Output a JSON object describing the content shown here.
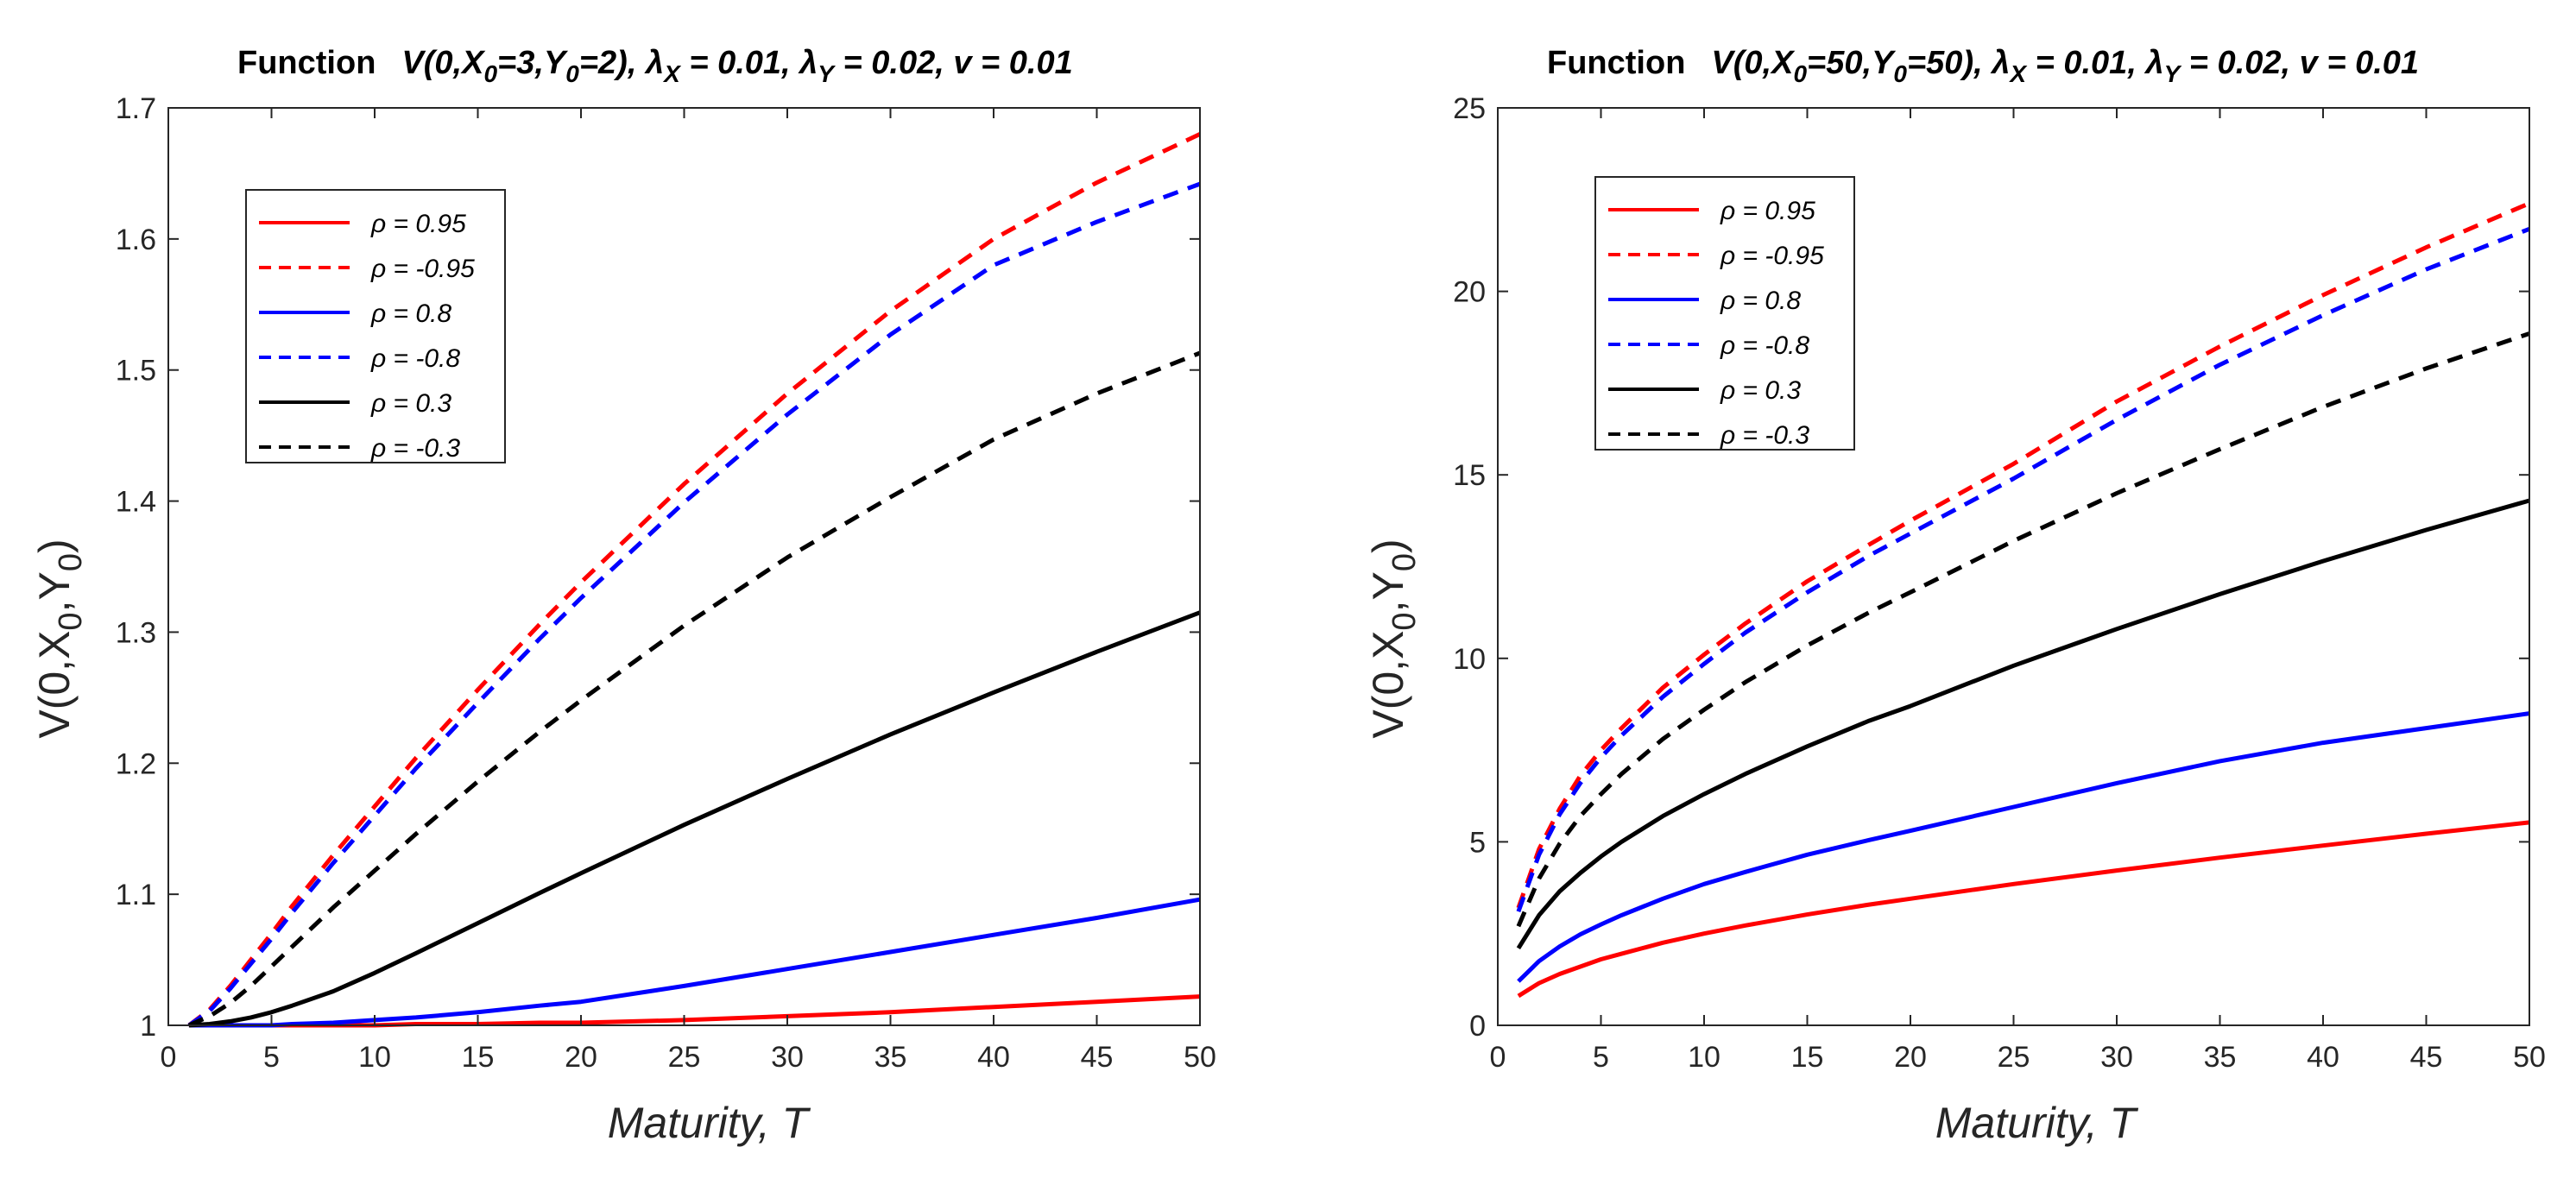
{
  "chart_data": [
    {
      "type": "line",
      "title_prefix": "Function",
      "title_formula": "V(0,X0=3,Y0=2), λX = 0.01, λY = 0.02, v = 0.01",
      "title_parts": {
        "v_open": "V(0,X",
        "sub0a": "0",
        "x_eq": "=3,Y",
        "sub0b": "0",
        "y_eq": "=2), λ",
        "subX": "X",
        "lx": " = 0.01, λ",
        "subY": "Y",
        "ly": " = 0.02, v = 0.01"
      },
      "xlabel": "Maturity, T",
      "xlabel_parts": {
        "plain": "Maturity, ",
        "italic": "T"
      },
      "ylabel": "V(0,X0,Y0)",
      "ylabel_parts": {
        "a": "V(0,X",
        "sub1": "0",
        "b": ",Y",
        "sub2": "0",
        "c": ")"
      },
      "xlim": [
        0,
        50
      ],
      "ylim": [
        1,
        1.7
      ],
      "xticks": [
        0,
        5,
        10,
        15,
        20,
        25,
        30,
        35,
        40,
        45,
        50
      ],
      "yticks": [
        1,
        1.1,
        1.2,
        1.3,
        1.4,
        1.5,
        1.6,
        1.7
      ],
      "ytick_labels": [
        "1",
        "1.1",
        "1.2",
        "1.3",
        "1.4",
        "1.5",
        "1.6",
        "1.7"
      ],
      "x": [
        1,
        2,
        3,
        4,
        5,
        6,
        8,
        10,
        12,
        15,
        18,
        20,
        25,
        30,
        35,
        40,
        45,
        50
      ],
      "legend_position": "top-left",
      "series": [
        {
          "name": "ρ = 0.95",
          "color": "#ff0000",
          "dash": "solid",
          "values": [
            1.0,
            1.0,
            1.0,
            1.0,
            1.0,
            1.0,
            1.0,
            1.0,
            1.001,
            1.001,
            1.002,
            1.002,
            1.004,
            1.007,
            1.01,
            1.014,
            1.018,
            1.022
          ]
        },
        {
          "name": "ρ = -0.95",
          "color": "#ff0000",
          "dash": "dashed",
          "values": [
            1.0,
            1.012,
            1.03,
            1.05,
            1.07,
            1.091,
            1.13,
            1.167,
            1.204,
            1.256,
            1.306,
            1.338,
            1.413,
            1.482,
            1.545,
            1.6,
            1.643,
            1.68
          ]
        },
        {
          "name": "ρ = 0.8",
          "color": "#0000ff",
          "dash": "solid",
          "values": [
            1.0,
            1.0,
            1.0,
            1.0,
            1.0,
            1.001,
            1.002,
            1.004,
            1.006,
            1.01,
            1.015,
            1.018,
            1.03,
            1.043,
            1.056,
            1.069,
            1.082,
            1.096
          ]
        },
        {
          "name": "ρ = -0.8",
          "color": "#0000ff",
          "dash": "dashed",
          "values": [
            1.0,
            1.011,
            1.028,
            1.047,
            1.066,
            1.086,
            1.124,
            1.16,
            1.196,
            1.246,
            1.295,
            1.326,
            1.399,
            1.466,
            1.527,
            1.58,
            1.613,
            1.642
          ]
        },
        {
          "name": "ρ = 0.3",
          "color": "#000000",
          "dash": "solid",
          "values": [
            1.0,
            1.001,
            1.003,
            1.006,
            1.01,
            1.015,
            1.026,
            1.04,
            1.055,
            1.078,
            1.101,
            1.116,
            1.153,
            1.188,
            1.222,
            1.254,
            1.285,
            1.315
          ]
        },
        {
          "name": "ρ = -0.3",
          "color": "#000000",
          "dash": "dashed",
          "values": [
            1.0,
            1.007,
            1.017,
            1.03,
            1.045,
            1.06,
            1.09,
            1.118,
            1.146,
            1.186,
            1.224,
            1.248,
            1.305,
            1.357,
            1.403,
            1.447,
            1.482,
            1.513
          ]
        }
      ],
      "legend": [
        "ρ = 0.95",
        "ρ = -0.95",
        "ρ = 0.8",
        "ρ = -0.8",
        "ρ = 0.3",
        "ρ = -0.3"
      ]
    },
    {
      "type": "line",
      "title_prefix": "Function",
      "title_formula": "V(0,X0=50,Y0=50), λX = 0.01, λY = 0.02, v = 0.01",
      "title_parts": {
        "v_open": "V(0,X",
        "sub0a": "0",
        "x_eq": "=50,Y",
        "sub0b": "0",
        "y_eq": "=50), λ",
        "subX": "X",
        "lx": " = 0.01, λ",
        "subY": "Y",
        "ly": " = 0.02, v = 0.01"
      },
      "xlabel": "Maturity, T",
      "xlabel_parts": {
        "plain": "Maturity, ",
        "italic": "T"
      },
      "ylabel": "V(0,X0,Y0)",
      "ylabel_parts": {
        "a": "V(0,X",
        "sub1": "0",
        "b": ",Y",
        "sub2": "0",
        "c": ")"
      },
      "xlim": [
        0,
        50
      ],
      "ylim": [
        0,
        25
      ],
      "xticks": [
        0,
        5,
        10,
        15,
        20,
        25,
        30,
        35,
        40,
        45,
        50
      ],
      "yticks": [
        0,
        5,
        10,
        15,
        20,
        25
      ],
      "ytick_labels": [
        "0",
        "5",
        "10",
        "15",
        "20",
        "25"
      ],
      "x": [
        1,
        2,
        3,
        4,
        5,
        6,
        8,
        10,
        12,
        15,
        18,
        20,
        25,
        30,
        35,
        40,
        45,
        50
      ],
      "legend_position": "top-left",
      "series": [
        {
          "name": "ρ = 0.95",
          "color": "#ff0000",
          "dash": "solid",
          "values": [
            0.8,
            1.15,
            1.4,
            1.6,
            1.8,
            1.95,
            2.25,
            2.5,
            2.72,
            3.02,
            3.29,
            3.45,
            3.85,
            4.22,
            4.57,
            4.9,
            5.22,
            5.53
          ]
        },
        {
          "name": "ρ = -0.95",
          "color": "#ff0000",
          "dash": "dashed",
          "values": [
            3.2,
            4.8,
            5.9,
            6.8,
            7.5,
            8.1,
            9.2,
            10.1,
            10.95,
            12.1,
            13.1,
            13.75,
            15.3,
            17.0,
            18.5,
            19.9,
            21.2,
            22.4
          ]
        },
        {
          "name": "ρ = 0.8",
          "color": "#0000ff",
          "dash": "solid",
          "values": [
            1.2,
            1.75,
            2.15,
            2.48,
            2.75,
            3.0,
            3.45,
            3.85,
            4.18,
            4.65,
            5.05,
            5.3,
            5.95,
            6.6,
            7.2,
            7.7,
            8.1,
            8.5
          ]
        },
        {
          "name": "ρ = -0.8",
          "color": "#0000ff",
          "dash": "dashed",
          "values": [
            3.1,
            4.65,
            5.75,
            6.6,
            7.3,
            7.9,
            8.95,
            9.85,
            10.7,
            11.8,
            12.8,
            13.4,
            14.9,
            16.5,
            18.0,
            19.35,
            20.6,
            21.7
          ]
        },
        {
          "name": "ρ = 0.3",
          "color": "#000000",
          "dash": "solid",
          "values": [
            2.1,
            3.0,
            3.65,
            4.15,
            4.6,
            5.0,
            5.7,
            6.3,
            6.85,
            7.6,
            8.3,
            8.7,
            9.8,
            10.8,
            11.75,
            12.65,
            13.5,
            14.3
          ]
        },
        {
          "name": "ρ = -0.3",
          "color": "#000000",
          "dash": "dashed",
          "values": [
            2.7,
            4.0,
            4.95,
            5.7,
            6.3,
            6.85,
            7.8,
            8.6,
            9.35,
            10.35,
            11.25,
            11.8,
            13.2,
            14.5,
            15.7,
            16.85,
            17.9,
            18.85
          ]
        }
      ],
      "legend": [
        "ρ = 0.95",
        "ρ = -0.95",
        "ρ = 0.8",
        "ρ = -0.8",
        "ρ = 0.3",
        "ρ = -0.3"
      ]
    }
  ]
}
